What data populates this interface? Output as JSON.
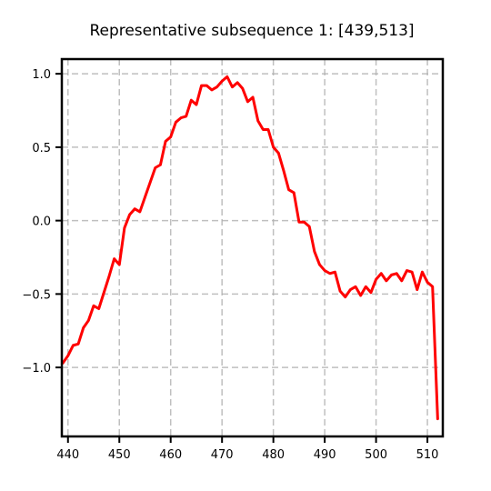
{
  "chart_data": {
    "type": "line",
    "title": "Representative subsequence 1: [439,513]",
    "xlabel": "",
    "ylabel": "",
    "xlim": [
      438.8,
      513.0
    ],
    "ylim": [
      -1.47,
      1.1
    ],
    "grid": true,
    "legend": "none",
    "xticks": [
      440,
      450,
      460,
      470,
      480,
      490,
      500,
      510
    ],
    "yticks": [
      1.0,
      0.5,
      0.0,
      -0.5,
      -1.0
    ],
    "ytick_labels": [
      "1.0",
      "0.5",
      "0.0",
      "−0.5",
      "−1.0"
    ],
    "series": [
      {
        "color": "#ff0000",
        "x": [
          439,
          440,
          441,
          442,
          443,
          444,
          445,
          446,
          447,
          448,
          449,
          450,
          451,
          452,
          453,
          454,
          455,
          456,
          457,
          458,
          459,
          460,
          461,
          462,
          463,
          464,
          465,
          466,
          467,
          468,
          469,
          470,
          471,
          472,
          473,
          474,
          475,
          476,
          477,
          478,
          479,
          480,
          481,
          482,
          483,
          484,
          485,
          486,
          487,
          488,
          489,
          490,
          491,
          492,
          493,
          494,
          495,
          496,
          497,
          498,
          499,
          500,
          501,
          502,
          503,
          504,
          505,
          506,
          507,
          508,
          509,
          510,
          511,
          512
        ],
        "y": [
          -0.97,
          -0.92,
          -0.85,
          -0.84,
          -0.73,
          -0.68,
          -0.58,
          -0.6,
          -0.49,
          -0.38,
          -0.26,
          -0.3,
          -0.05,
          0.04,
          0.08,
          0.06,
          0.16,
          0.26,
          0.36,
          0.38,
          0.54,
          0.57,
          0.67,
          0.7,
          0.71,
          0.82,
          0.79,
          0.92,
          0.92,
          0.89,
          0.91,
          0.95,
          0.98,
          0.91,
          0.94,
          0.9,
          0.81,
          0.84,
          0.68,
          0.62,
          0.62,
          0.5,
          0.46,
          0.34,
          0.21,
          0.19,
          -0.01,
          -0.01,
          -0.04,
          -0.21,
          -0.3,
          -0.34,
          -0.36,
          -0.35,
          -0.48,
          -0.52,
          -0.47,
          -0.45,
          -0.51,
          -0.45,
          -0.49,
          -0.4,
          -0.36,
          -0.41,
          -0.37,
          -0.36,
          -0.41,
          -0.34,
          -0.35,
          -0.47,
          -0.35,
          -0.42,
          -0.45,
          -1.35
        ]
      }
    ]
  }
}
